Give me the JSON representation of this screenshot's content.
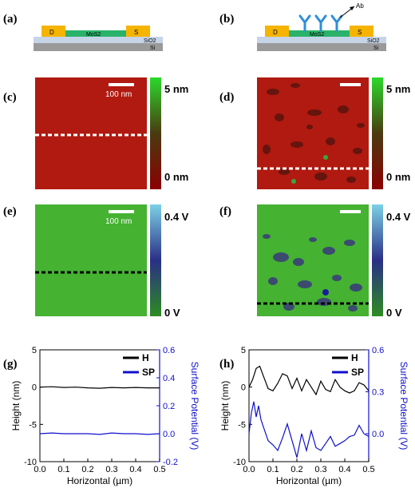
{
  "panels": {
    "a": "(a)",
    "b": "(b)",
    "c": "(c)",
    "d": "(d)",
    "e": "(e)",
    "f": "(f)",
    "g": "(g)",
    "h": "(h)"
  },
  "device": {
    "drain": "D",
    "source": "S",
    "channel": "MoS2",
    "oxide": "SiO2",
    "substrate": "Si",
    "antibody": "Ab"
  },
  "afm": {
    "scalebar": "100 nm",
    "height_max": "5 nm",
    "height_min": "0 nm",
    "potential_max": "0.4 V",
    "potential_min": "0 V"
  },
  "colors": {
    "height_top": "#2bd92b",
    "height_bottom": "#8b0000",
    "height_fill": "#b01a10",
    "potential_top": "#7cd1e6",
    "potential_mid": "#2a2f86",
    "potential_bottom": "#2d8b22",
    "potential_fill": "#45b232",
    "electrode": "#f5b400",
    "channel": "#2bb26a",
    "oxide": "#c6d4e8",
    "silicon": "#9a9a9a",
    "antibody": "#2e8fd8",
    "series_h": "#000000",
    "series_sp": "#1010cc"
  },
  "chart_data": [
    {
      "type": "line",
      "xlabel": "Horizontal (µm)",
      "ylabel": "Height (nm)",
      "y2label": "Surface Potential (V)",
      "xlim": [
        0.0,
        0.5
      ],
      "ylim": [
        -10,
        5
      ],
      "y2lim": [
        -0.2,
        0.6
      ],
      "xticks": [
        "0.0",
        "0.1",
        "0.2",
        "0.3",
        "0.4",
        "0.5"
      ],
      "yticks": [
        "5",
        "0",
        "-5",
        "-10"
      ],
      "y2ticks": [
        "0.6",
        "0.4",
        "0.2",
        "0.0",
        "-0.2"
      ],
      "legend": "top-right",
      "series": [
        {
          "name": "H",
          "axis": "left",
          "x": [
            0.0,
            0.05,
            0.1,
            0.15,
            0.2,
            0.25,
            0.3,
            0.35,
            0.4,
            0.45,
            0.5
          ],
          "y": [
            0.0,
            0.05,
            -0.05,
            0.0,
            -0.1,
            -0.15,
            -0.05,
            -0.1,
            -0.05,
            -0.1,
            -0.1
          ]
        },
        {
          "name": "SP",
          "axis": "right",
          "x": [
            0.0,
            0.05,
            0.1,
            0.15,
            0.2,
            0.25,
            0.3,
            0.35,
            0.4,
            0.45,
            0.5
          ],
          "y": [
            0.0,
            0.005,
            0.0,
            0.0,
            0.0,
            -0.005,
            0.005,
            0.0,
            0.0,
            -0.005,
            0.0
          ]
        }
      ]
    },
    {
      "type": "line",
      "xlabel": "Horizontal (µm)",
      "ylabel": "Height (nm)",
      "y2label": "Surface Potential (V)",
      "xlim": [
        0.0,
        0.5
      ],
      "ylim": [
        -10,
        5
      ],
      "y2lim": [
        -0.2,
        0.6
      ],
      "xticks": [
        "0.0",
        "0.1",
        "0.2",
        "0.3",
        "0.4",
        "0.5"
      ],
      "yticks": [
        "5",
        "0",
        "-5",
        "-10"
      ],
      "y2ticks": [
        "0.6",
        "0.3",
        "0.0"
      ],
      "legend": "top-right",
      "series": [
        {
          "name": "H",
          "axis": "left",
          "x": [
            0.0,
            0.015,
            0.03,
            0.045,
            0.06,
            0.08,
            0.1,
            0.12,
            0.14,
            0.16,
            0.18,
            0.2,
            0.22,
            0.24,
            0.26,
            0.28,
            0.3,
            0.32,
            0.34,
            0.36,
            0.38,
            0.4,
            0.42,
            0.44,
            0.46,
            0.48,
            0.5
          ],
          "y": [
            0.0,
            1.0,
            2.5,
            2.8,
            1.5,
            -0.2,
            -0.5,
            0.5,
            1.8,
            1.5,
            -0.2,
            1.2,
            -0.5,
            1.0,
            0.0,
            -1.0,
            0.8,
            -0.3,
            -0.6,
            1.0,
            0.0,
            -0.5,
            -0.8,
            -0.5,
            0.6,
            0.3,
            -0.5
          ]
        },
        {
          "name": "SP",
          "axis": "right",
          "x": [
            0.0,
            0.01,
            0.02,
            0.03,
            0.04,
            0.05,
            0.06,
            0.08,
            0.1,
            0.12,
            0.14,
            0.16,
            0.18,
            0.2,
            0.22,
            0.24,
            0.26,
            0.28,
            0.3,
            0.32,
            0.34,
            0.36,
            0.38,
            0.4,
            0.42,
            0.44,
            0.46,
            0.48,
            0.5
          ],
          "y": [
            0.0,
            0.15,
            0.23,
            0.12,
            0.2,
            0.1,
            0.05,
            -0.05,
            -0.08,
            -0.12,
            -0.03,
            0.07,
            -0.05,
            -0.17,
            0.0,
            -0.12,
            0.02,
            -0.1,
            -0.12,
            -0.07,
            -0.02,
            -0.09,
            -0.07,
            -0.05,
            -0.02,
            -0.01,
            0.06,
            0.0,
            -0.02
          ]
        }
      ]
    }
  ]
}
